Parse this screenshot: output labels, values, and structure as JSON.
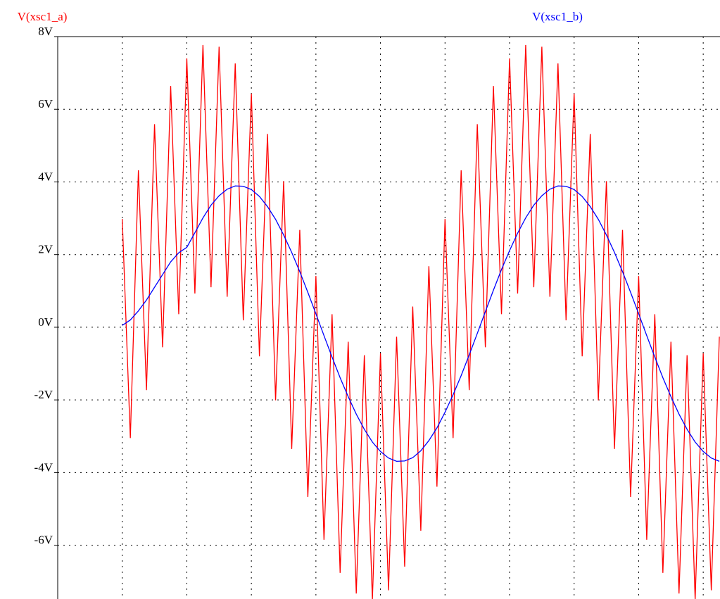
{
  "chart_data": {
    "type": "line",
    "x": [
      1,
      1.125,
      1.25,
      1.375,
      1.5,
      1.625,
      1.75,
      1.875,
      2,
      2.125,
      2.25,
      2.375,
      2.5,
      2.625,
      2.75,
      2.875,
      3,
      3.125,
      3.25,
      3.375,
      3.5,
      3.625,
      3.75,
      3.875,
      4,
      4.125,
      4.25,
      4.375,
      4.5,
      4.625,
      4.75,
      4.875,
      5,
      5.125,
      5.25,
      5.375,
      5.5,
      5.625,
      5.75,
      5.875,
      6,
      6.125,
      6.25,
      6.375,
      6.5,
      6.625,
      6.75,
      6.875,
      7,
      7.125,
      7.25,
      7.375,
      7.5,
      7.625,
      7.75,
      7.875,
      8,
      8.125,
      8.25,
      8.375,
      8.5,
      8.625,
      8.75,
      8.875,
      9,
      9.125,
      9.25,
      9.375,
      9.5,
      9.625,
      9.75,
      9.875,
      10,
      10.125,
      10.25
    ],
    "series": [
      {
        "name": "V(xsc1_a)",
        "color": "#ff0000",
        "values": [
          2.98,
          -3.05,
          4.32,
          -1.73,
          5.59,
          -0.55,
          6.64,
          0.36,
          7.4,
          0.93,
          7.77,
          1.1,
          7.72,
          0.84,
          7.26,
          0.19,
          6.43,
          -0.8,
          5.32,
          -2.01,
          4.02,
          -3.35,
          2.68,
          -4.67,
          1.41,
          -5.85,
          0.36,
          -6.76,
          -0.4,
          -7.33,
          -0.77,
          -7.5,
          -0.72,
          -7.24,
          -0.26,
          -6.59,
          0.57,
          -5.6,
          1.68,
          -4.39,
          2.98,
          -3.05,
          4.32,
          -1.73,
          5.59,
          -0.55,
          6.64,
          0.36,
          7.4,
          0.93,
          7.77,
          1.1,
          7.72,
          0.84,
          7.26,
          0.19,
          6.43,
          -0.8,
          5.32,
          -2.01,
          4.02,
          -3.35,
          2.68,
          -4.67,
          1.41,
          -5.85,
          0.36,
          -6.76,
          -0.4,
          -7.33,
          -0.77,
          -7.5,
          -0.72,
          -7.24,
          -0.26
        ]
      },
      {
        "name": "V(xsc1_b)",
        "color": "#0000ff",
        "values": [
          0.05,
          0.2,
          0.45,
          0.75,
          1.1,
          1.45,
          1.8,
          2.05,
          2.2,
          2.6,
          3.01,
          3.36,
          3.62,
          3.8,
          3.89,
          3.88,
          3.79,
          3.6,
          3.32,
          2.97,
          2.54,
          2.06,
          1.53,
          0.96,
          0.37,
          -0.23,
          -0.82,
          -1.39,
          -1.91,
          -2.39,
          -2.81,
          -3.16,
          -3.42,
          -3.6,
          -3.69,
          -3.68,
          -3.59,
          -3.4,
          -3.12,
          -2.77,
          -2.34,
          -1.86,
          -1.33,
          -0.76,
          -0.17,
          0.43,
          1.02,
          1.59,
          2.11,
          2.59,
          3.01,
          3.36,
          3.62,
          3.8,
          3.89,
          3.88,
          3.79,
          3.6,
          3.32,
          2.97,
          2.54,
          2.06,
          1.53,
          0.96,
          0.37,
          -0.23,
          -0.82,
          -1.39,
          -1.91,
          -2.39,
          -2.81,
          -3.16,
          -3.42,
          -3.6,
          -3.69
        ]
      }
    ],
    "xlim": [
      0,
      10.26
    ],
    "xticks": [
      1,
      2,
      3,
      4,
      5,
      6,
      7,
      8,
      9,
      10
    ],
    "ylim": [
      -7.48,
      8
    ],
    "yticks": [
      {
        "value": 8,
        "label": "8V"
      },
      {
        "value": 6,
        "label": "6V"
      },
      {
        "value": 4,
        "label": "4V"
      },
      {
        "value": 2,
        "label": "2V"
      },
      {
        "value": 0,
        "label": "0V"
      },
      {
        "value": -2,
        "label": "-2V"
      },
      {
        "value": -4,
        "label": "-4V"
      },
      {
        "value": -6,
        "label": "-6V"
      }
    ],
    "grid": true
  }
}
